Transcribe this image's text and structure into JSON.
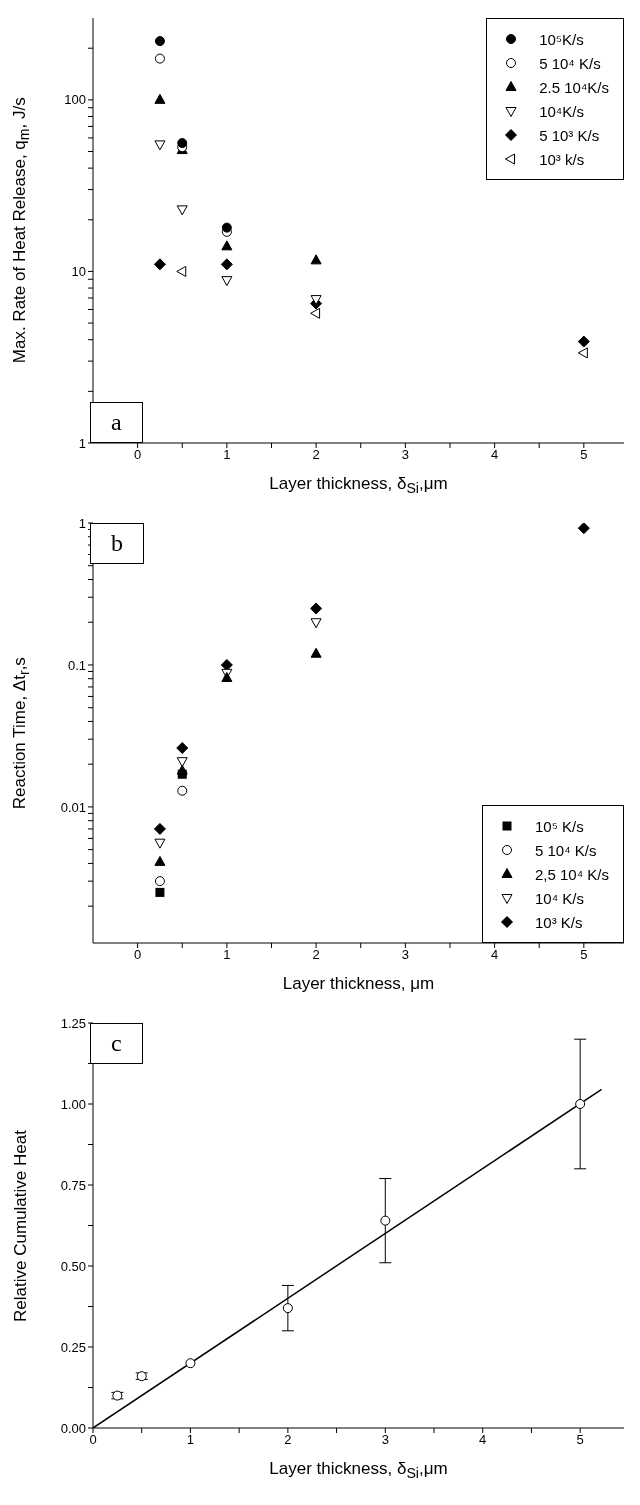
{
  "chart_data": [
    {
      "type": "scatter",
      "xlabel": "Layer thickness, δ$_{Si}$,μm",
      "ylabel": "Max. Rate of Heat Release, q$_{m}$, J/s",
      "annotations": [
        "a"
      ],
      "log": "y",
      "legend": "top right",
      "xlim": [
        -0.5,
        5.45
      ],
      "xticks": [
        0,
        {
          "value": 0.5,
          "label": null
        },
        1,
        {
          "value": 1.5,
          "label": null
        },
        2,
        {
          "value": 2.5,
          "label": null
        },
        3,
        {
          "value": 3.5,
          "label": null
        },
        4,
        {
          "value": 4.5,
          "label": null
        },
        5
      ],
      "ylim": [
        1,
        300
      ],
      "yticks": [
        1,
        {
          "value": 2,
          "label": null
        },
        {
          "value": 3,
          "label": null
        },
        {
          "value": 4,
          "label": null
        },
        {
          "value": 5,
          "label": null
        },
        {
          "value": 6,
          "label": null
        },
        {
          "value": 7,
          "label": null
        },
        {
          "value": 8,
          "label": null
        },
        {
          "value": 9,
          "label": null
        },
        10,
        {
          "value": 20,
          "label": null
        },
        {
          "value": 30,
          "label": null
        },
        {
          "value": 40,
          "label": null
        },
        {
          "value": 50,
          "label": null
        },
        {
          "value": 60,
          "label": null
        },
        {
          "value": 70,
          "label": null
        },
        {
          "value": 80,
          "label": null
        },
        {
          "value": 90,
          "label": null
        },
        100,
        {
          "value": 200,
          "label": null
        }
      ],
      "series": [
        {
          "name": "10⁵K/s",
          "color": "#000000",
          "marker": "circle",
          "x": [
            0.25,
            0.5,
            1
          ],
          "values": [
            220,
            56,
            18
          ]
        },
        {
          "name": "5 10⁴ K/s",
          "color": "#ffffff",
          "marker": "circle",
          "x": [
            0.25,
            0.5,
            1
          ],
          "values": [
            174,
            53,
            17
          ]
        },
        {
          "name": "2.5 10⁴K/s",
          "color": "#000000",
          "marker": "triangle",
          "x": [
            0.25,
            0.5,
            1,
            2
          ],
          "values": [
            100,
            51,
            14,
            11.6
          ]
        },
        {
          "name": "10⁴K/s",
          "color": "#ffffff",
          "marker": "triangle-down",
          "x": [
            0.25,
            0.5,
            1,
            2
          ],
          "values": [
            55,
            23,
            8.9,
            6.9
          ]
        },
        {
          "name": "5 10³ K/s",
          "color": "#000000",
          "marker": "diamond",
          "x": [
            0.25,
            1,
            2,
            5
          ],
          "values": [
            11,
            11,
            6.5,
            3.9
          ]
        },
        {
          "name": "10³ k/s",
          "color": "#ffffff",
          "marker": "triangle-left",
          "x": [
            0.5,
            2,
            5
          ],
          "values": [
            10,
            5.7,
            3.35
          ]
        }
      ]
    },
    {
      "type": "scatter",
      "xlabel": "Layer thickness, μm",
      "ylabel": "Reaction Time, Δt$_{r}$,s",
      "annotations": [
        "b"
      ],
      "log": "y",
      "legend": "bottom right",
      "xlim": [
        -0.5,
        5.45
      ],
      "xticks": [
        0,
        {
          "value": 0.5,
          "label": null
        },
        1,
        {
          "value": 1.5,
          "label": null
        },
        2,
        {
          "value": 2.5,
          "label": null
        },
        3,
        {
          "value": 3.5,
          "label": null
        },
        4,
        {
          "value": 4.5,
          "label": null
        },
        5
      ],
      "ylim": [
        0.0011,
        1
      ],
      "yticks": [
        {
          "value": 0.002,
          "label": null
        },
        {
          "value": 0.003,
          "label": null
        },
        {
          "value": 0.004,
          "label": null
        },
        {
          "value": 0.005,
          "label": null
        },
        {
          "value": 0.006,
          "label": null
        },
        {
          "value": 0.007,
          "label": null
        },
        {
          "value": 0.008,
          "label": null
        },
        {
          "value": 0.009,
          "label": null
        },
        0.01,
        {
          "value": 0.02,
          "label": null
        },
        {
          "value": 0.03,
          "label": null
        },
        {
          "value": 0.04,
          "label": null
        },
        {
          "value": 0.05,
          "label": null
        },
        {
          "value": 0.06,
          "label": null
        },
        {
          "value": 0.07,
          "label": null
        },
        {
          "value": 0.08,
          "label": null
        },
        {
          "value": 0.09,
          "label": null
        },
        0.1,
        {
          "value": 0.2,
          "label": null
        },
        {
          "value": 0.3,
          "label": null
        },
        {
          "value": 0.4,
          "label": null
        },
        {
          "value": 0.5,
          "label": null
        },
        {
          "value": 0.6,
          "label": null
        },
        {
          "value": 0.7,
          "label": null
        },
        {
          "value": 0.8,
          "label": null
        },
        {
          "value": 0.9,
          "label": null
        },
        1
      ],
      "series": [
        {
          "name": "10⁵ K/s",
          "color": "#000000",
          "marker": "square",
          "x": [
            0.25,
            0.5
          ],
          "values": [
            0.0025,
            0.017
          ]
        },
        {
          "name": "5 10⁴ K/s",
          "color": "#ffffff",
          "marker": "circle",
          "x": [
            0.25,
            0.5
          ],
          "values": [
            0.003,
            0.013
          ]
        },
        {
          "name": "2,5 10⁴ K/s",
          "color": "#000000",
          "marker": "triangle",
          "x": [
            0.25,
            0.5,
            1,
            2
          ],
          "values": [
            0.0041,
            0.018,
            0.081,
            0.12
          ]
        },
        {
          "name": "10⁴ K/s",
          "color": "#ffffff",
          "marker": "triangle-down",
          "x": [
            0.25,
            0.5,
            1,
            2
          ],
          "values": [
            0.0056,
            0.021,
            0.088,
            0.2
          ]
        },
        {
          "name": "10³ K/s",
          "color": "#000000",
          "marker": "diamond",
          "x": [
            0.25,
            0.5,
            1,
            2,
            5
          ],
          "values": [
            0.007,
            0.026,
            0.1,
            0.25,
            0.92
          ]
        }
      ]
    },
    {
      "type": "scatter",
      "xlabel": "Layer thickness, δ$_{Si}$,μm",
      "ylabel": "Relative Cumulative Heat",
      "annotations": [
        "c"
      ],
      "xlim": [
        0,
        5.45
      ],
      "xticks": [
        0,
        {
          "value": 0.5,
          "label": null
        },
        1,
        {
          "value": 1.5,
          "label": null
        },
        2,
        {
          "value": 2.5,
          "label": null
        },
        3,
        {
          "value": 3.5,
          "label": null
        },
        4,
        {
          "value": 4.5,
          "label": null
        },
        5
      ],
      "ylim": [
        0,
        1.25
      ],
      "yticks": [
        {
          "value": 0,
          "label": "0.00"
        },
        {
          "value": 0.125,
          "label": null
        },
        {
          "value": 0.25,
          "label": "0.25"
        },
        {
          "value": 0.375,
          "label": null
        },
        {
          "value": 0.5,
          "label": "0.50"
        },
        {
          "value": 0.625,
          "label": null
        },
        {
          "value": 0.75,
          "label": "0.75"
        },
        {
          "value": 0.875,
          "label": null
        },
        {
          "value": 1,
          "label": "1.00"
        },
        {
          "value": 1.125,
          "label": null
        },
        {
          "value": 1.25,
          "label": "1.25"
        }
      ],
      "series": [
        {
          "color": "#ffffff",
          "marker": "circle",
          "x": [
            0.25,
            0.5,
            1,
            2,
            3,
            5
          ],
          "values": [
            0.1,
            0.16,
            0.2,
            0.37,
            0.64,
            1.0
          ],
          "errors": [
            0.01,
            0.01,
            null,
            [
              0.3,
              0.44
            ],
            [
              0.51,
              0.77
            ],
            [
              0.8,
              1.2
            ]
          ]
        },
        {
          "type": "line",
          "color": "#000000",
          "line_style": "solid",
          "marker": "none",
          "x": [
            0,
            5.22
          ],
          "values": [
            0,
            1.045
          ]
        }
      ]
    }
  ]
}
